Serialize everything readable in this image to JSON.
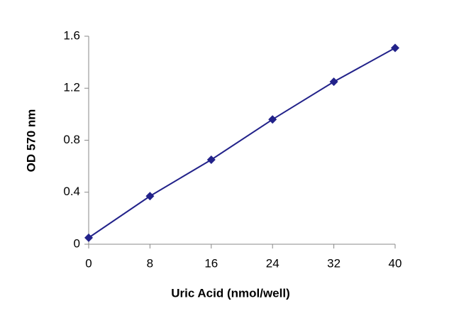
{
  "chart_data": {
    "type": "line",
    "x_label": "Uric Acid (nmol/well)",
    "y_label": "OD 570 nm",
    "x": [
      0,
      8,
      16,
      24,
      32,
      40
    ],
    "values": [
      0.05,
      0.37,
      0.65,
      0.96,
      1.25,
      1.51
    ],
    "color": "#22228a",
    "xlim": [
      0,
      40
    ],
    "xticks": [
      0,
      8,
      16,
      24,
      32,
      40
    ],
    "ylim": [
      0,
      1.6
    ],
    "yticks": [
      0,
      0.4,
      0.8,
      1.2,
      1.6
    ],
    "grid": false
  }
}
